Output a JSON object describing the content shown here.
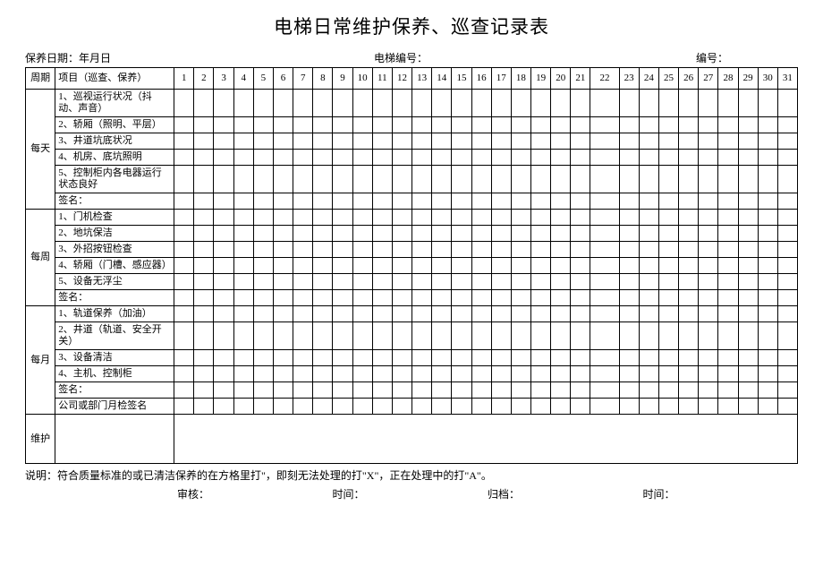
{
  "title": "电梯日常维护保养、巡查记录表",
  "meta": {
    "date_label": "保养日期：年月日",
    "elevator_no_label": "电梯编号：",
    "doc_no_label": "编号："
  },
  "headers": {
    "period": "周期",
    "item": "项目（巡查、保养）",
    "days": [
      "1",
      "2",
      "3",
      "4",
      "5",
      "6",
      "7",
      "8",
      "9",
      "10",
      "11",
      "12",
      "13",
      "14",
      "15",
      "16",
      "17",
      "18",
      "19",
      "20",
      "21",
      "22",
      "23",
      "24",
      "25",
      "26",
      "27",
      "28",
      "29",
      "30",
      "31"
    ]
  },
  "sections": [
    {
      "period": "每天",
      "items": [
        "1、巡视运行状况（抖动、声音）",
        "2、轿厢（照明、平层）",
        "3、井道坑底状况",
        "4、机房、底坑照明",
        "5、控制柜内各电器运行状态良好",
        "签名："
      ],
      "tall": [
        0,
        4
      ]
    },
    {
      "period": "每周",
      "items": [
        "1、门机检查",
        "2、地坑保洁",
        "3、外招按钮检查",
        "4、轿厢（门槽、感应器）",
        "5、设备无浮尘",
        "签名："
      ],
      "tall": []
    },
    {
      "period": "每月",
      "items": [
        "1、轨道保养（加油）",
        "2、井道（轨道、安全开关）",
        "3、设备清洁",
        "4、主机、控制柜",
        "签名：",
        "公司或部门月检签名"
      ],
      "tall": [
        1
      ]
    }
  ],
  "maint": {
    "label": "维护"
  },
  "note": "说明：符合质量标准的或已清洁保养的在方格里打\"，即刻无法处理的打\"X\"，正在处理中的打\"A\"。",
  "footer": {
    "review": "审核：",
    "time1": "时间：",
    "archive": "归档：",
    "time2": "时间："
  }
}
